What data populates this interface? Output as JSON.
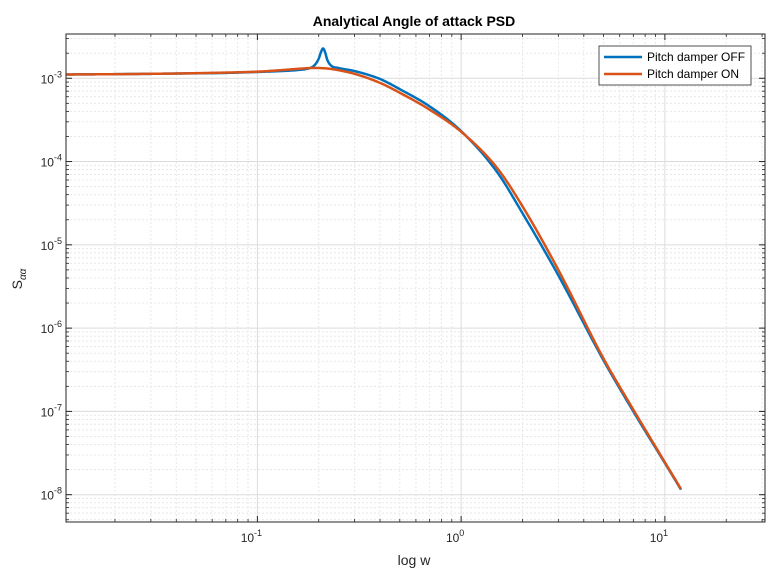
{
  "chart_data": {
    "type": "line",
    "title": "Analytical Angle of attack PSD",
    "xlabel": "log w",
    "ylabel_base": "S",
    "ylabel_subscript": "αα",
    "xscale": "log",
    "yscale": "log",
    "xlim": [
      0.0115,
      31
    ],
    "ylim": [
      4.7e-09,
      0.0034
    ],
    "grid": true,
    "minor_grid": true,
    "legend_position": "top-right",
    "x_ticks": [
      {
        "value": 0.1,
        "base": "10",
        "exp": "-1"
      },
      {
        "value": 1,
        "base": "10",
        "exp": "0"
      },
      {
        "value": 10,
        "base": "10",
        "exp": "1"
      }
    ],
    "y_ticks": [
      {
        "value": 1e-08,
        "base": "10",
        "exp": "-8"
      },
      {
        "value": 1e-07,
        "base": "10",
        "exp": "-7"
      },
      {
        "value": 1e-06,
        "base": "10",
        "exp": "-6"
      },
      {
        "value": 1e-05,
        "base": "10",
        "exp": "-5"
      },
      {
        "value": 0.0001,
        "base": "10",
        "exp": "-4"
      },
      {
        "value": 0.001,
        "base": "10",
        "exp": "-3"
      }
    ],
    "series": [
      {
        "name": "Pitch damper OFF",
        "color": "#0072BD",
        "x": [
          0.0115,
          0.02,
          0.04,
          0.07,
          0.1,
          0.13,
          0.16,
          0.18,
          0.19,
          0.2,
          0.205,
          0.21,
          0.215,
          0.22,
          0.23,
          0.25,
          0.3,
          0.4,
          0.5,
          0.7,
          1.0,
          1.5,
          2.0,
          3.0,
          5.0,
          7.0,
          10.0,
          12.0
        ],
        "y": [
          0.00111,
          0.00112,
          0.00114,
          0.00116,
          0.00119,
          0.00122,
          0.00126,
          0.00132,
          0.00142,
          0.00172,
          0.00205,
          0.00228,
          0.00205,
          0.00168,
          0.00142,
          0.00133,
          0.00122,
          0.00098,
          0.00074,
          0.00046,
          0.000232,
          7.5e-05,
          2.4e-05,
          4.3e-06,
          4.1e-07,
          1e-07,
          2.4e-08,
          1.15e-08
        ]
      },
      {
        "name": "Pitch damper ON",
        "color": "#D95319",
        "x": [
          0.0115,
          0.02,
          0.04,
          0.07,
          0.1,
          0.13,
          0.16,
          0.19,
          0.22,
          0.25,
          0.3,
          0.4,
          0.5,
          0.7,
          1.0,
          1.5,
          2.0,
          3.0,
          5.0,
          7.0,
          10.0,
          12.0
        ],
        "y": [
          0.00111,
          0.00112,
          0.00114,
          0.00117,
          0.0012,
          0.00125,
          0.0013,
          0.00133,
          0.00131,
          0.00125,
          0.00113,
          0.00088,
          0.00067,
          0.00042,
          0.000228,
          8.4e-05,
          2.9e-05,
          5e-06,
          4.3e-07,
          1.05e-07,
          2.45e-08,
          1.17e-08
        ]
      }
    ]
  }
}
